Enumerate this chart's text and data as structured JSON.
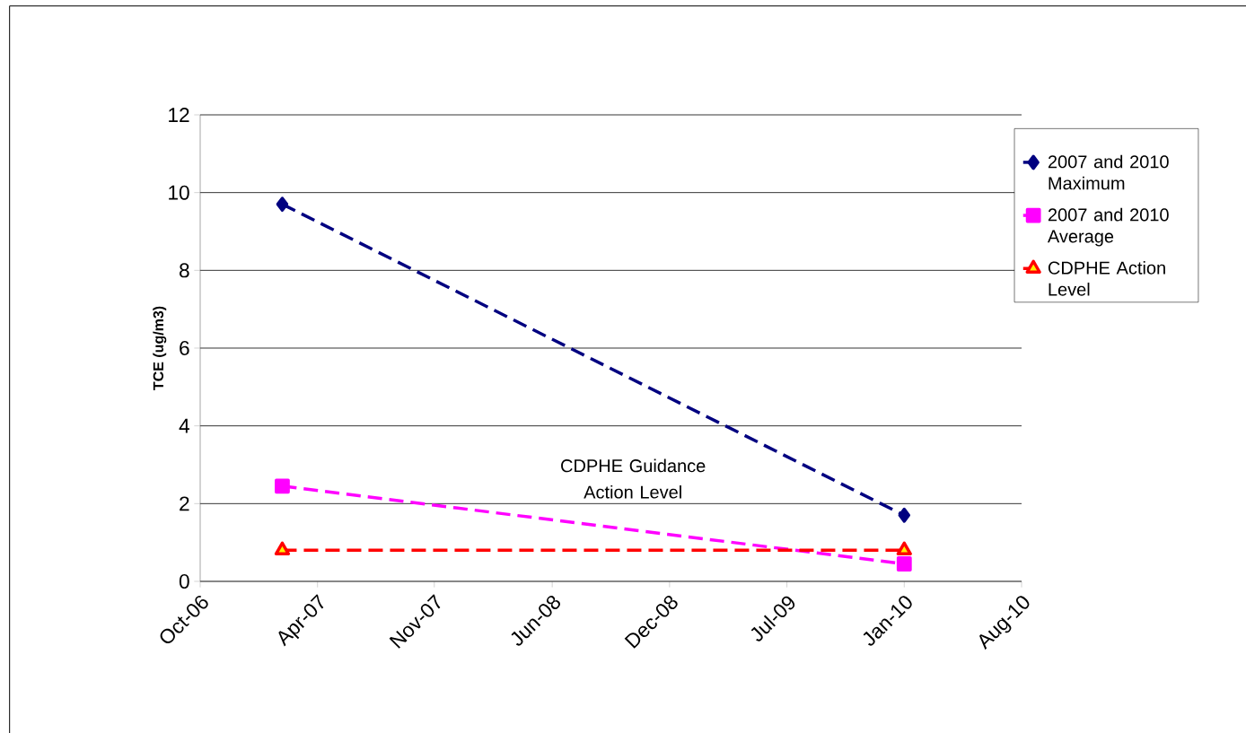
{
  "chart_data": {
    "type": "line",
    "ylabel": "TCE (ug/m3)",
    "xlim": [
      "2006-10-01",
      "2010-08-22"
    ],
    "xticks": [
      {
        "value": "2006-10-01",
        "label": "Oct-06"
      },
      {
        "value": "2007-04-22",
        "label": "Apr-07"
      },
      {
        "value": "2007-11-10",
        "label": "Nov-07"
      },
      {
        "value": "2008-06-01",
        "label": "Jun-08"
      },
      {
        "value": "2008-12-21",
        "label": "Dec-08"
      },
      {
        "value": "2009-07-12",
        "label": "Jul-09"
      },
      {
        "value": "2010-01-31",
        "label": "Jan-10"
      },
      {
        "value": "2010-08-22",
        "label": "Aug-10"
      }
    ],
    "ylim": [
      0,
      12
    ],
    "yticks": [
      0,
      2,
      4,
      6,
      8,
      10,
      12
    ],
    "grid": "y",
    "legend": "right",
    "x": [
      "2007-02-20",
      "2010-01-31"
    ],
    "series": [
      {
        "name": "2007 and 2010 Maximum",
        "color": "#000080",
        "marker": "diamond",
        "line_style": "dashed",
        "values": [
          9.7,
          1.7
        ]
      },
      {
        "name": "2007 and 2010 Average",
        "color": "#ff00ff",
        "marker": "square",
        "line_style": "dashed",
        "values": [
          2.45,
          0.45
        ]
      },
      {
        "name": "CDPHE Action Level",
        "color": "#ff0000",
        "marker": "triangle",
        "line_style": "dashed",
        "values": [
          0.8,
          0.8
        ]
      }
    ],
    "annotations": [
      "CDPHE Guidance Action Level"
    ]
  }
}
